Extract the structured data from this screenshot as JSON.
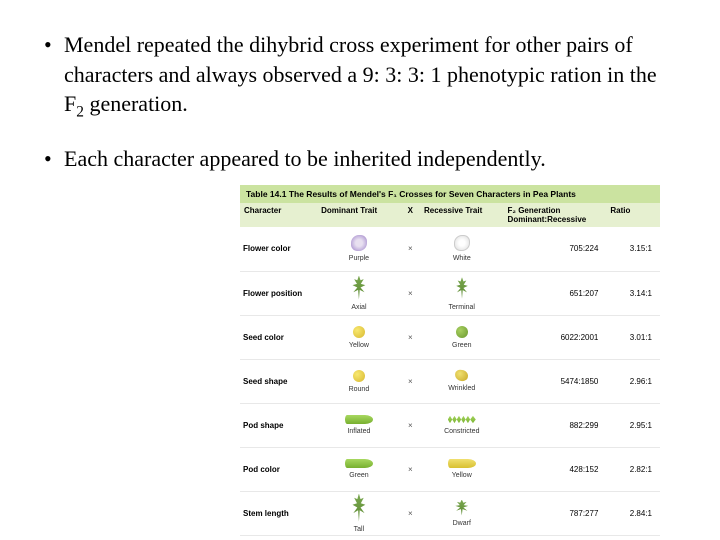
{
  "bullets": {
    "b1_pre": "Mendel repeated the dihybrid cross experiment for other pairs of characters and always observed a 9: 3: 3: 1 phenotypic ration in the F",
    "b1_sub": "2",
    "b1_post": " generation.",
    "b2": "Each character appeared to be inherited independently."
  },
  "table": {
    "title": "Table 14.1  The Results of Mendel's F₁ Crosses for Seven Characters in Pea Plants",
    "headers": {
      "character": "Character",
      "dominant": "Dominant Trait",
      "x": "X",
      "recessive": "Recessive Trait",
      "f2": "F₂ Generation Dominant:Recessive",
      "ratio": "Ratio"
    },
    "rows": [
      {
        "character": "Flower color",
        "dom_label": "Purple",
        "rec_label": "White",
        "f2": "705:224",
        "ratio": "3.15:1",
        "dom_icon": "flower-purple",
        "rec_icon": "flower-white"
      },
      {
        "character": "Flower position",
        "dom_label": "Axial",
        "rec_label": "Terminal",
        "f2": "651:207",
        "ratio": "3.14:1",
        "dom_icon": "plant-axial",
        "rec_icon": "plant-terminal"
      },
      {
        "character": "Seed color",
        "dom_label": "Yellow",
        "rec_label": "Green",
        "f2": "6022:2001",
        "ratio": "3.01:1",
        "dom_icon": "seed-yellow",
        "rec_icon": "seed-green"
      },
      {
        "character": "Seed shape",
        "dom_label": "Round",
        "rec_label": "Wrinkled",
        "f2": "5474:1850",
        "ratio": "2.96:1",
        "dom_icon": "seed-yellow",
        "rec_icon": "seed-wrinkled"
      },
      {
        "character": "Pod shape",
        "dom_label": "Inflated",
        "rec_label": "Constricted",
        "f2": "882:299",
        "ratio": "2.95:1",
        "dom_icon": "pod-green",
        "rec_icon": "pod-const"
      },
      {
        "character": "Pod color",
        "dom_label": "Green",
        "rec_label": "Yellow",
        "f2": "428:152",
        "ratio": "2.82:1",
        "dom_icon": "pod-green",
        "rec_icon": "pod-yellow"
      },
      {
        "character": "Stem length",
        "dom_label": "Tall",
        "rec_label": "Dwarf",
        "f2": "787:277",
        "ratio": "2.84:1",
        "dom_icon": "plant-tall",
        "rec_icon": "plant-dwarf"
      }
    ],
    "colors": {
      "title_bg": "#cbe3a0",
      "header_bg": "#e6f0d0",
      "row_border": "#e8e8e8"
    }
  }
}
